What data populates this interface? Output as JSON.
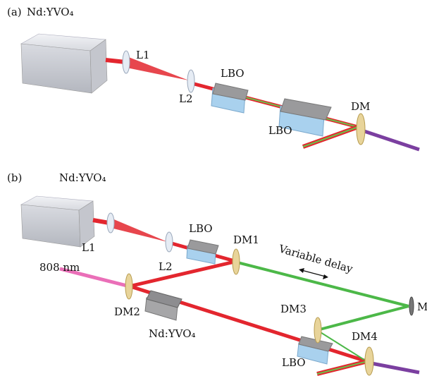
{
  "panels": [
    {
      "label": "(a)",
      "title": "Nd:YVO₄",
      "components": [
        "L1",
        "L2",
        "LBO",
        "LBO",
        "DM"
      ]
    },
    {
      "label": "(b)",
      "title": "Nd:YVO₄",
      "components": [
        "L1",
        "L2",
        "LBO",
        "DM1",
        "Variable delay",
        "808 nm",
        "DM2",
        "Nd:YVO₄",
        "DM3",
        "M",
        "DM4",
        "LBO"
      ]
    }
  ]
}
